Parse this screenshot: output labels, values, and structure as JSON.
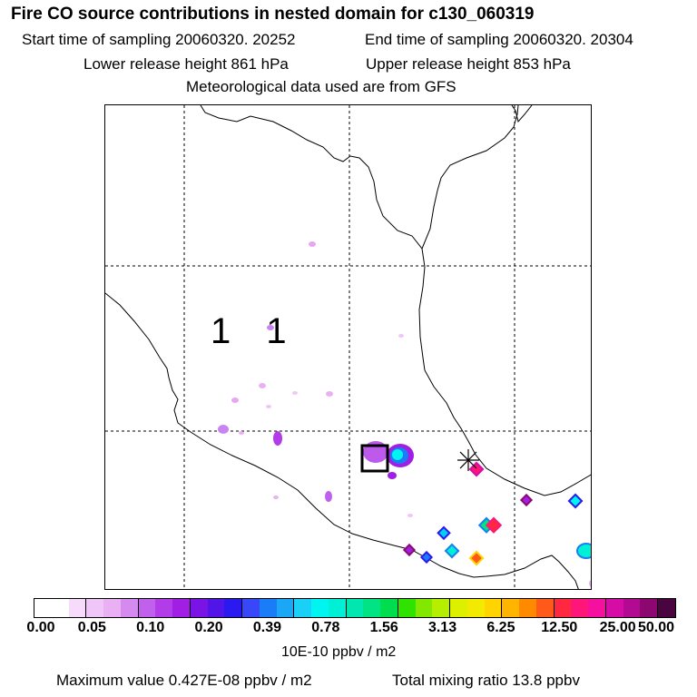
{
  "header": {
    "title": "Fire CO source contributions in nested domain for c130_060319",
    "start": "Start time of sampling 20060320. 20252",
    "end": "End time of sampling 20060320. 20304",
    "lower": "Lower release height  861 hPa",
    "upper": "Upper release height  853 hPa",
    "met": "Meteorological data used are from GFS"
  },
  "map": {
    "grid_label": "1 1",
    "receptor_marker": "asterisk-marker",
    "source_box": "release-box"
  },
  "colorbar": {
    "colors": [
      "#ffffff",
      "#ffffff",
      "#f6dcfa",
      "#f0c5f7",
      "#eab0f4",
      "#d58af0",
      "#c160ec",
      "#b13ce8",
      "#a11ee4",
      "#7a14e4",
      "#5215e8",
      "#2a1af0",
      "#3848f8",
      "#1a7cf6",
      "#1aa8f6",
      "#1ad0f6",
      "#00f4f0",
      "#00f0d6",
      "#00e8b0",
      "#00e484",
      "#00de50",
      "#30e200",
      "#82e800",
      "#b6ee00",
      "#dcf000",
      "#f2ea00",
      "#ffd400",
      "#ffb400",
      "#ff8a00",
      "#ff5a1a",
      "#ff2840",
      "#ff1678",
      "#f510a0",
      "#d60ca6",
      "#b20a90",
      "#8c0870",
      "#4a0440"
    ],
    "ticks": [
      "0.00",
      "0.05",
      "0.10",
      "0.20",
      "0.39",
      "0.78",
      "1.56",
      "3.13",
      "6.25",
      "12.50",
      "25.00",
      "50.00"
    ],
    "unit": "10E-10 ppbv / m2"
  },
  "footer": {
    "max_value": "Maximum value  0.427E-08 ppbv / m2",
    "total": "Total mixing ratio       13.8 ppbv"
  }
}
